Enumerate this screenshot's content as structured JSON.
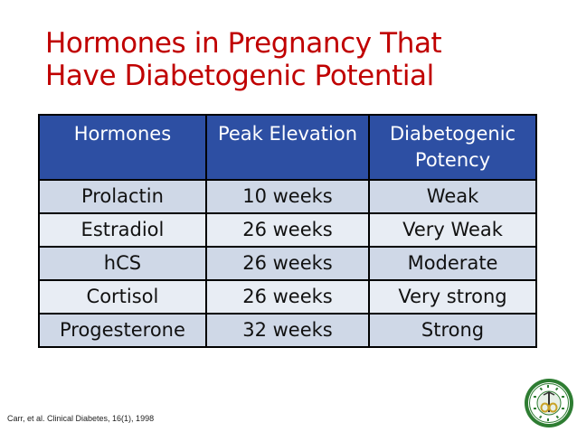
{
  "title": {
    "line1": "Hormones in Pregnancy That",
    "line2": "Have Diabetogenic Potential"
  },
  "table": {
    "headers": [
      "Hormones",
      "Peak Elevation",
      "Diabetogenic\nPotency"
    ],
    "header_line1": [
      "Hormones",
      "Peak Elevation",
      "Diabetogenic"
    ],
    "header_line2": [
      "",
      "",
      "Potency"
    ],
    "rows": [
      [
        "Prolactin",
        "10 weeks",
        "Weak"
      ],
      [
        "Estradiol",
        "26 weeks",
        "Very Weak"
      ],
      [
        "hCS",
        "26 weeks",
        "Moderate"
      ],
      [
        "Cortisol",
        "26 weeks",
        "Very strong"
      ],
      [
        "Progesterone",
        "32 weeks",
        "Strong"
      ]
    ]
  },
  "citation": "Carr, et al. Clinical Diabetes, 16(1), 1998",
  "seal": {
    "icon": "university-seal-icon"
  },
  "colors": {
    "title": "#c00000",
    "header_bg": "#2d4fa3",
    "row_odd": "#cfd8e7",
    "row_even": "#e8edf4",
    "seal_green": "#2e7d32"
  }
}
